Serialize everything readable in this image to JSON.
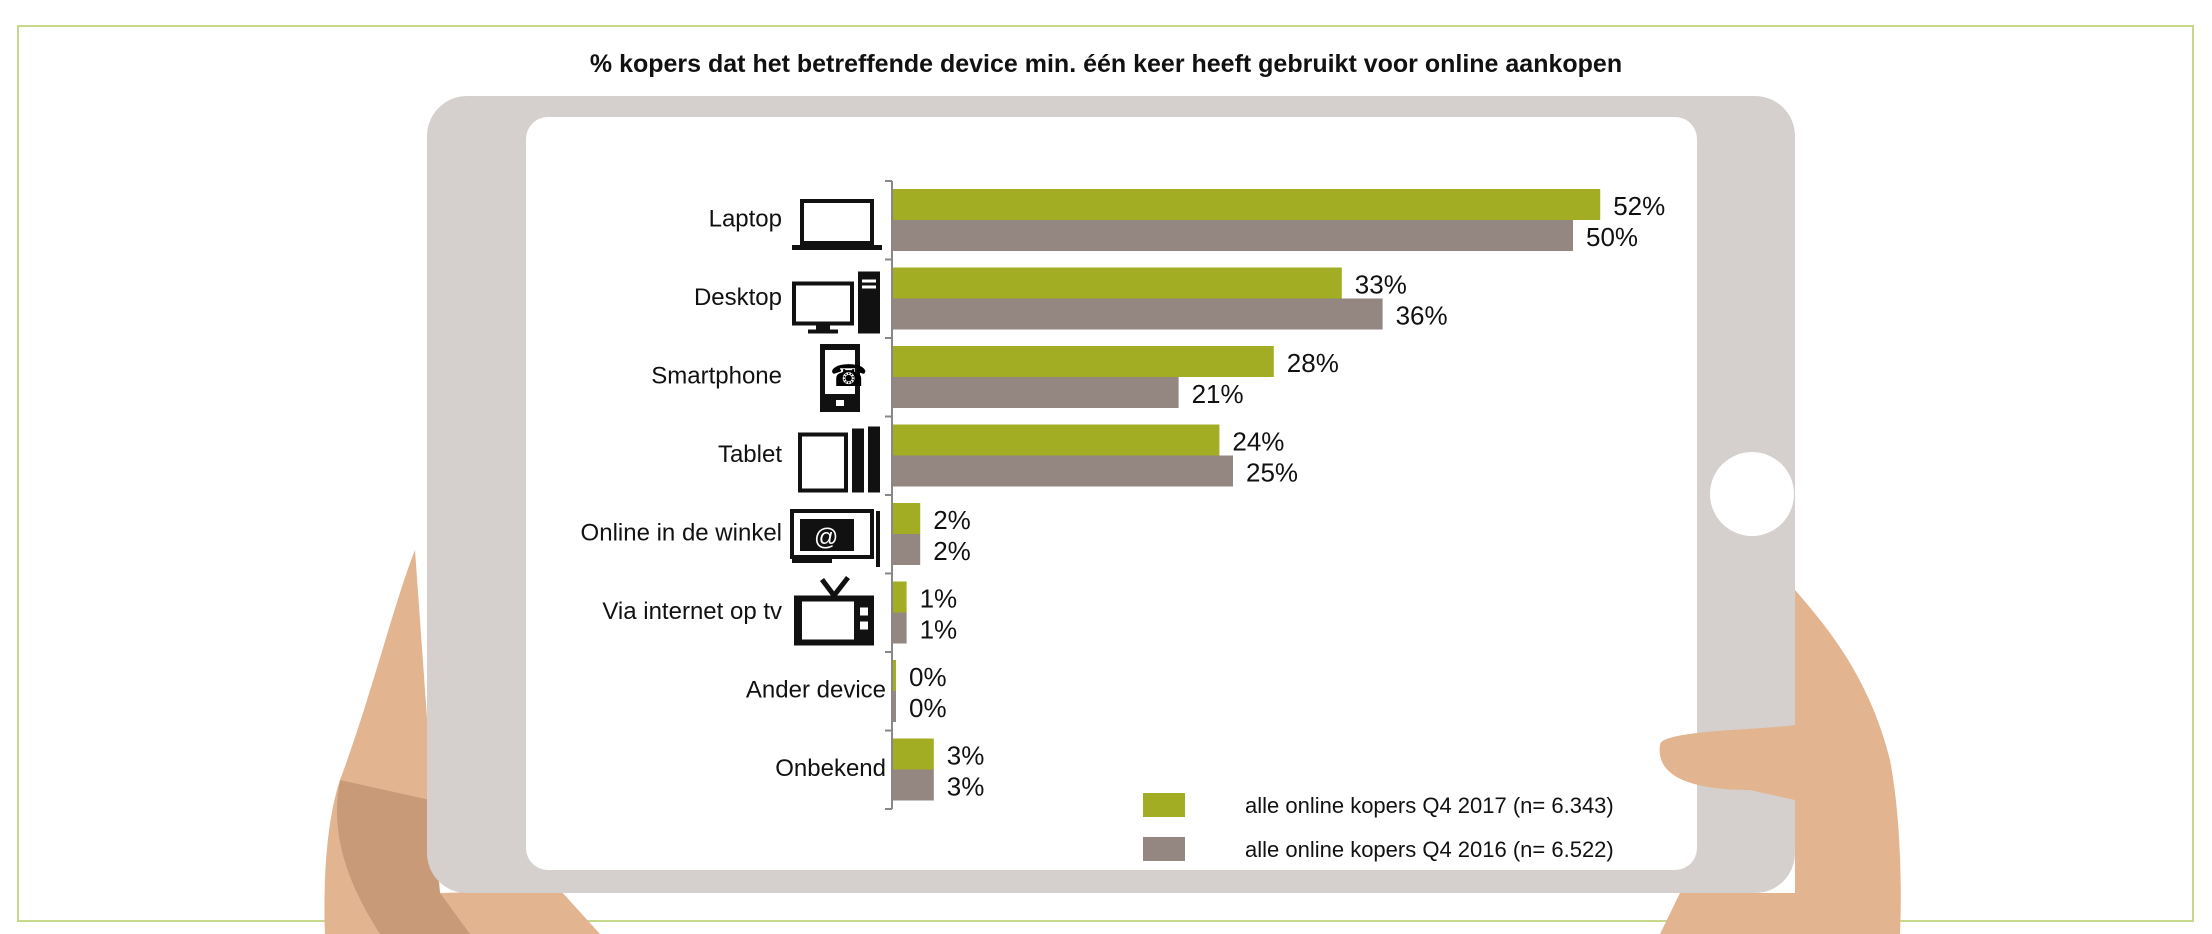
{
  "title": "% kopers dat het betreffende device min. één keer heeft gebruikt voor online aankopen",
  "colors": {
    "series_2017": "#a2ad23",
    "series_2016": "#948680",
    "tablet_frame": "#d5d0cd",
    "skin": "#e2b48f",
    "skin_shadow": "#c99a78"
  },
  "chart_data": {
    "type": "bar",
    "orientation": "horizontal",
    "title": "% kopers dat het betreffende device min. één keer heeft gebruikt voor online aankopen",
    "categories": [
      "Laptop",
      "Desktop",
      "Smartphone",
      "Tablet",
      "Online in de winkel",
      "Via internet op tv",
      "Ander device",
      "Onbekend"
    ],
    "category_icons": [
      "laptop-icon",
      "desktop-icon",
      "smartphone-icon",
      "tablet-icon",
      "in-store-terminal-icon",
      "tv-icon",
      "",
      ""
    ],
    "series": [
      {
        "name": "alle online kopers Q4 2017 (n= 6.343)",
        "values": [
          52,
          33,
          28,
          24,
          2,
          1,
          0,
          3
        ],
        "labels": [
          "52%",
          "33%",
          "28%",
          "24%",
          "2%",
          "1%",
          "0%",
          "3%"
        ],
        "color": "#a2ad23"
      },
      {
        "name": "alle online kopers Q4 2016 (n= 6.522)",
        "values": [
          50,
          36,
          21,
          25,
          2,
          1,
          0,
          3
        ],
        "labels": [
          "50%",
          "36%",
          "21%",
          "25%",
          "2%",
          "1%",
          "0%",
          "3%"
        ],
        "color": "#948680"
      }
    ],
    "xlim": [
      0,
      55
    ],
    "unit": "%",
    "grid": false,
    "legend_position": "bottom-right"
  }
}
